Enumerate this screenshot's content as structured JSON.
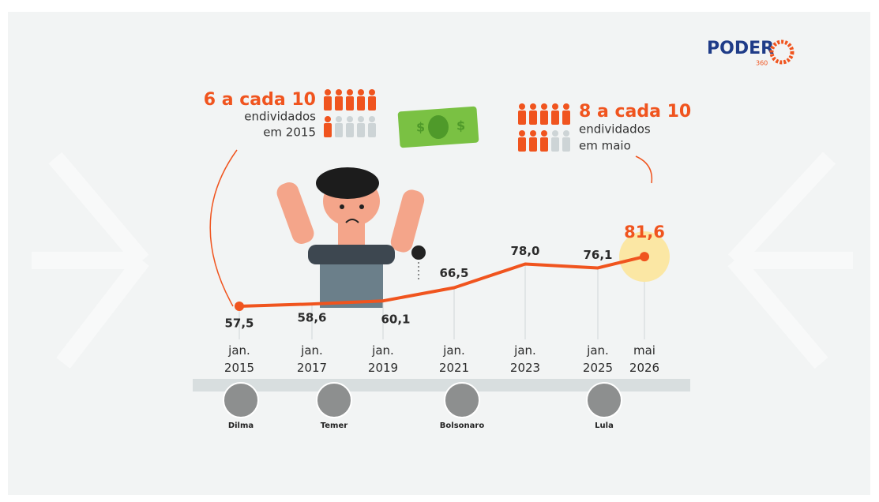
{
  "brand": {
    "name": "PODER",
    "suffix": "360"
  },
  "callouts": [
    {
      "headline": "6 a cada 10",
      "line1": "endividados",
      "line2": "em 2015"
    },
    {
      "headline": "8 a cada 10",
      "line1": "endividados",
      "line2": "em maio"
    }
  ],
  "presidents": [
    "Dilma",
    "Temer",
    "Bolsonaro",
    "Lula"
  ],
  "chart_data": {
    "type": "line",
    "categories": [
      "jan. 2015",
      "jan. 2017",
      "jan. 2019",
      "jan. 2021",
      "jan. 2023",
      "jan. 2025",
      "mai 2026"
    ],
    "series": [
      {
        "name": null,
        "color": "#f0541e",
        "values": [
          57.5,
          58.6,
          60.1,
          66.5,
          78.0,
          76.1,
          81.6
        ],
        "value_labels": [
          "57,5",
          "58,6",
          "60,1",
          "66,5",
          "78,0",
          "76,1",
          "81,6"
        ]
      }
    ]
  }
}
